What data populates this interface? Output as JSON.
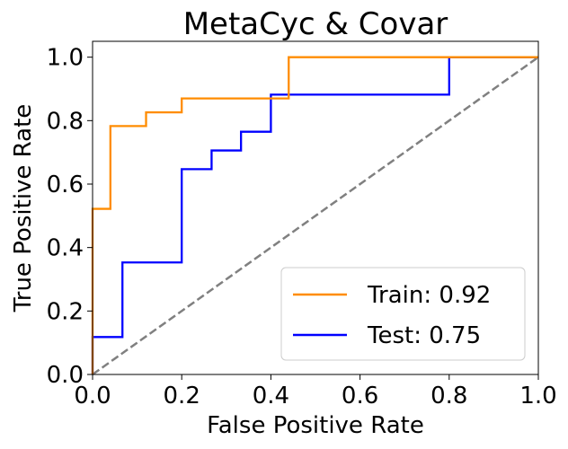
{
  "chart_data": {
    "type": "line",
    "title": "MetaCyc & Covar",
    "xlabel": "False Positive Rate",
    "ylabel": "True Positive Rate",
    "xlim": [
      0.0,
      1.0
    ],
    "ylim": [
      0.0,
      1.05
    ],
    "x_ticks": [
      "0.0",
      "0.2",
      "0.4",
      "0.6",
      "0.8",
      "1.0"
    ],
    "y_ticks": [
      "0.0",
      "0.2",
      "0.4",
      "0.6",
      "0.8",
      "1.0"
    ],
    "x_tick_values": [
      0.0,
      0.2,
      0.4,
      0.6,
      0.8,
      1.0
    ],
    "y_tick_values": [
      0.0,
      0.2,
      0.4,
      0.6,
      0.8,
      1.0
    ],
    "legend_position": "lower-right",
    "grid": false,
    "series": [
      {
        "name": "Train: 0.92",
        "color": "#ff8c00",
        "style": "step",
        "points": [
          [
            0.0,
            0.0
          ],
          [
            0.0,
            0.522
          ],
          [
            0.04,
            0.522
          ],
          [
            0.04,
            0.783
          ],
          [
            0.12,
            0.783
          ],
          [
            0.12,
            0.826
          ],
          [
            0.2,
            0.826
          ],
          [
            0.2,
            0.87
          ],
          [
            0.44,
            0.87
          ],
          [
            0.44,
            1.0
          ],
          [
            1.0,
            1.0
          ]
        ]
      },
      {
        "name": "Test: 0.75",
        "color": "#0000ff",
        "style": "step",
        "points": [
          [
            0.0,
            0.0
          ],
          [
            0.0,
            0.118
          ],
          [
            0.067,
            0.118
          ],
          [
            0.067,
            0.353
          ],
          [
            0.2,
            0.353
          ],
          [
            0.2,
            0.647
          ],
          [
            0.267,
            0.647
          ],
          [
            0.267,
            0.706
          ],
          [
            0.333,
            0.706
          ],
          [
            0.333,
            0.765
          ],
          [
            0.4,
            0.765
          ],
          [
            0.4,
            0.882
          ],
          [
            0.8,
            0.882
          ],
          [
            0.8,
            1.0
          ],
          [
            1.0,
            1.0
          ]
        ]
      },
      {
        "color": "#808080",
        "style": "dashed",
        "points": [
          [
            0.0,
            0.0
          ],
          [
            1.0,
            1.0
          ]
        ]
      }
    ]
  }
}
